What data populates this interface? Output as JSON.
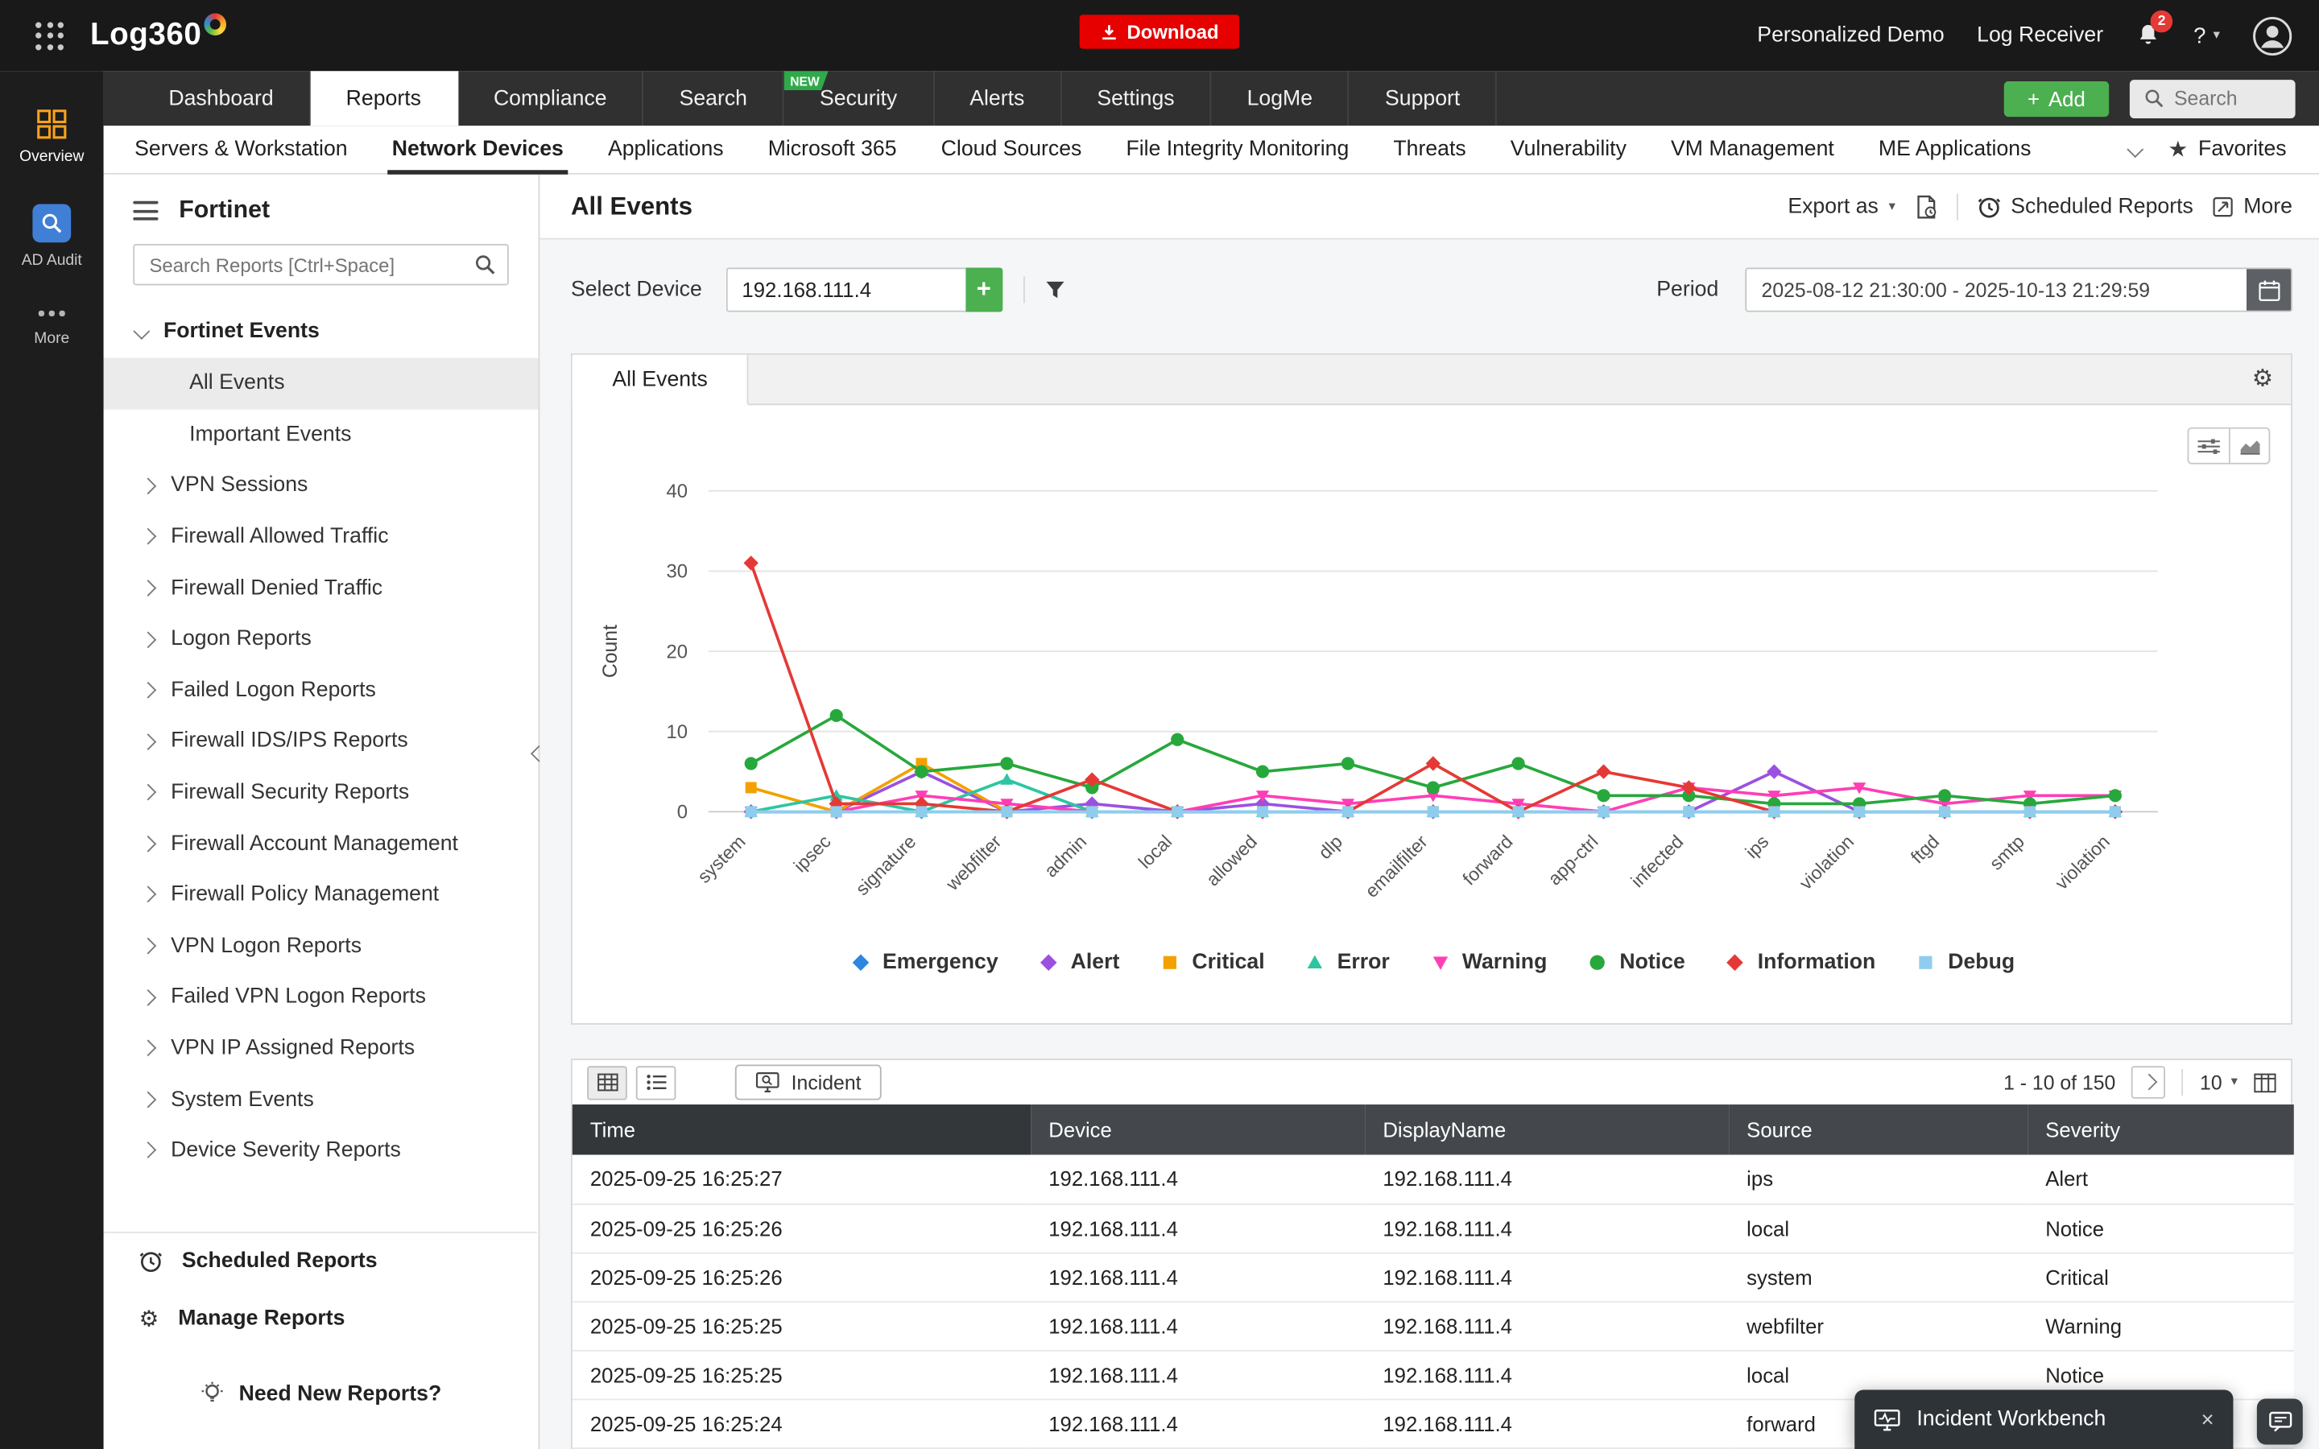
{
  "topbar": {
    "logo_text": "Log360",
    "download_label": "Download",
    "personalized_demo": "Personalized Demo",
    "log_receiver": "Log Receiver",
    "notification_count": "2",
    "help_label": "?"
  },
  "mainnav": {
    "tabs": [
      {
        "label": "Dashboard"
      },
      {
        "label": "Reports",
        "active": true
      },
      {
        "label": "Compliance"
      },
      {
        "label": "Search"
      },
      {
        "label": "Security",
        "badge": "NEW"
      },
      {
        "label": "Alerts"
      },
      {
        "label": "Settings"
      },
      {
        "label": "LogMe"
      },
      {
        "label": "Support"
      }
    ],
    "add_label": "Add",
    "search_placeholder": "Search"
  },
  "subnav": {
    "items": [
      {
        "label": "Servers & Workstation"
      },
      {
        "label": "Network Devices",
        "active": true
      },
      {
        "label": "Applications"
      },
      {
        "label": "Microsoft 365"
      },
      {
        "label": "Cloud Sources"
      },
      {
        "label": "File Integrity Monitoring"
      },
      {
        "label": "Threats"
      },
      {
        "label": "Vulnerability"
      },
      {
        "label": "VM Management"
      },
      {
        "label": "ME Applications"
      }
    ],
    "favorites_label": "Favorites"
  },
  "rail": {
    "overview_label": "Overview",
    "ad_audit_label": "AD Audit",
    "more_label": "More"
  },
  "sidebar": {
    "title": "Fortinet",
    "search_placeholder": "Search Reports [Ctrl+Space]",
    "group_label": "Fortinet Events",
    "items": [
      {
        "label": "All Events",
        "leaf": true,
        "selected": true
      },
      {
        "label": "Important Events",
        "leaf": true
      },
      {
        "label": "VPN Sessions"
      },
      {
        "label": "Firewall Allowed Traffic"
      },
      {
        "label": "Firewall Denied Traffic"
      },
      {
        "label": "Logon Reports"
      },
      {
        "label": "Failed Logon Reports"
      },
      {
        "label": "Firewall IDS/IPS Reports"
      },
      {
        "label": "Firewall Security Reports"
      },
      {
        "label": "Firewall Account Management"
      },
      {
        "label": "Firewall Policy Management"
      },
      {
        "label": "VPN Logon Reports"
      },
      {
        "label": "Failed VPN Logon Reports"
      },
      {
        "label": "VPN IP Assigned Reports"
      },
      {
        "label": "System Events"
      },
      {
        "label": "Device Severity Reports"
      }
    ],
    "scheduled_reports_label": "Scheduled Reports",
    "manage_reports_label": "Manage Reports",
    "need_new_reports_label": "Need New Reports?"
  },
  "report": {
    "title": "All Events",
    "export_as_label": "Export as",
    "scheduled_reports_label": "Scheduled Reports",
    "more_label": "More",
    "select_device_label": "Select Device",
    "device_value": "192.168.111.4",
    "period_label": "Period",
    "period_value": "2025-08-12 21:30:00 - 2025-10-13 21:29:59",
    "chart_tab_label": "All Events"
  },
  "chart_data": {
    "type": "line",
    "title": "All Events",
    "xlabel": "",
    "ylabel": "Count",
    "ylim": [
      0,
      40
    ],
    "yticks": [
      0,
      10,
      20,
      30,
      40
    ],
    "grid": true,
    "legend_position": "bottom",
    "categories": [
      "system",
      "ipsec",
      "signature",
      "webfilter",
      "admin",
      "local",
      "allowed",
      "dlp",
      "emailfilter",
      "forward",
      "app-ctrl",
      "infected",
      "ips",
      "violation",
      "ftgd",
      "smtp",
      "violation"
    ],
    "series": [
      {
        "name": "Emergency",
        "color": "#2e86de",
        "marker": "diamond",
        "values": [
          0,
          0,
          0,
          0,
          0,
          0,
          0,
          0,
          0,
          0,
          0,
          0,
          0,
          0,
          0,
          0,
          0
        ]
      },
      {
        "name": "Alert",
        "color": "#9b51e0",
        "marker": "diamond",
        "values": [
          0,
          0,
          5,
          0,
          1,
          0,
          1,
          0,
          0,
          0,
          0,
          0,
          5,
          0,
          0,
          0,
          0
        ]
      },
      {
        "name": "Critical",
        "color": "#f2a100",
        "marker": "square",
        "values": [
          3,
          0,
          6,
          0,
          0,
          0,
          0,
          0,
          0,
          0,
          0,
          0,
          0,
          0,
          0,
          0,
          0
        ]
      },
      {
        "name": "Error",
        "color": "#2dc5a2",
        "marker": "triangle",
        "values": [
          0,
          2,
          0,
          4,
          0,
          0,
          0,
          0,
          0,
          0,
          0,
          0,
          0,
          0,
          0,
          0,
          0
        ]
      },
      {
        "name": "Warning",
        "color": "#ff3eb5",
        "marker": "tri-down",
        "values": [
          0,
          0,
          2,
          1,
          0,
          0,
          2,
          1,
          2,
          1,
          0,
          3,
          2,
          3,
          1,
          2,
          2
        ]
      },
      {
        "name": "Notice",
        "color": "#27a83c",
        "marker": "circle",
        "values": [
          6,
          12,
          5,
          6,
          3,
          9,
          5,
          6,
          3,
          6,
          2,
          2,
          1,
          1,
          2,
          1,
          2
        ]
      },
      {
        "name": "Information",
        "color": "#e53935",
        "marker": "diamond",
        "values": [
          31,
          1,
          1,
          0,
          4,
          0,
          0,
          0,
          6,
          0,
          5,
          3,
          0,
          0,
          0,
          0,
          0
        ]
      },
      {
        "name": "Debug",
        "color": "#8fcdee",
        "marker": "square",
        "values": [
          0,
          0,
          0,
          0,
          0,
          0,
          0,
          0,
          0,
          0,
          0,
          0,
          0,
          0,
          0,
          0,
          0
        ]
      }
    ]
  },
  "table": {
    "incident_label": "Incident",
    "pagination_label": "1 - 10 of 150",
    "page_size": "10",
    "columns": [
      "Time",
      "Device",
      "DisplayName",
      "Source",
      "Severity"
    ],
    "rows": [
      [
        "2025-09-25 16:25:27",
        "192.168.111.4",
        "192.168.111.4",
        "ips",
        "Alert"
      ],
      [
        "2025-09-25 16:25:26",
        "192.168.111.4",
        "192.168.111.4",
        "local",
        "Notice"
      ],
      [
        "2025-09-25 16:25:26",
        "192.168.111.4",
        "192.168.111.4",
        "system",
        "Critical"
      ],
      [
        "2025-09-25 16:25:25",
        "192.168.111.4",
        "192.168.111.4",
        "webfilter",
        "Warning"
      ],
      [
        "2025-09-25 16:25:25",
        "192.168.111.4",
        "192.168.111.4",
        "local",
        "Notice"
      ],
      [
        "2025-09-25 16:25:24",
        "192.168.111.4",
        "192.168.111.4",
        "forward",
        ""
      ]
    ]
  },
  "workbench": {
    "label": "Incident Workbench"
  }
}
